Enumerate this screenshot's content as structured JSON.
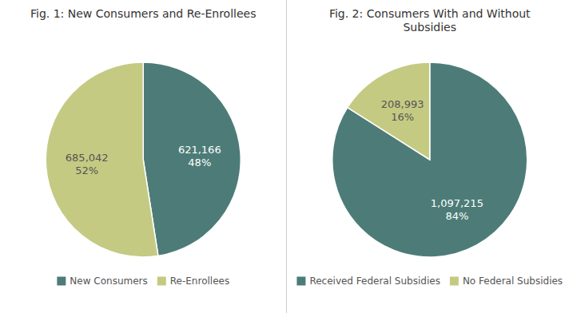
{
  "chart_data": [
    {
      "type": "pie",
      "title": "Fig. 1: New Consumers and Re-Enrollees",
      "categories": [
        "New Consumers",
        "Re-Enrollees"
      ],
      "values": [
        621166,
        685042
      ],
      "value_labels": [
        "621,166\n48%",
        "685,042\n52%"
      ],
      "colors": [
        "#4d7c78",
        "#c5ca82"
      ],
      "data_labels": true,
      "legend": "bottom"
    },
    {
      "type": "pie",
      "title": "Fig. 2: Consumers With and Without\nSubsidies",
      "categories": [
        "Received Federal Subsidies",
        "No Federal Subsidies"
      ],
      "values": [
        1097215,
        208993
      ],
      "value_labels": [
        "1,097,215\n84%",
        "208,993\n16%"
      ],
      "colors": [
        "#4d7c78",
        "#c5ca82"
      ],
      "data_labels": true,
      "legend": "bottom"
    }
  ]
}
